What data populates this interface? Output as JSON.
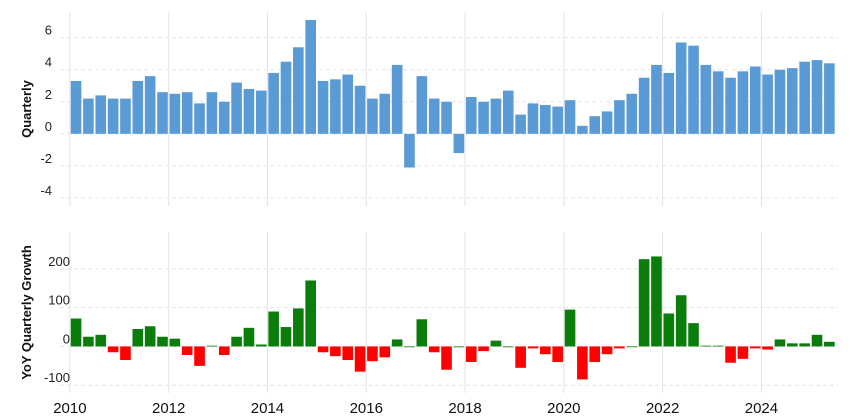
{
  "chart_data": [
    {
      "type": "bar",
      "ylabel": "Quarterly",
      "ylim": [
        -4.5,
        7.6
      ],
      "yticks": [
        -4,
        -2,
        0,
        2,
        4,
        6
      ],
      "ytick_labels": [
        "-4",
        "-2",
        "0",
        "2",
        "4",
        "6"
      ],
      "grid": true,
      "color": "#5b9bd5",
      "x": [
        2010.0,
        2010.25,
        2010.5,
        2010.75,
        2011.0,
        2011.25,
        2011.5,
        2011.75,
        2012.0,
        2012.25,
        2012.5,
        2012.75,
        2013.0,
        2013.25,
        2013.5,
        2013.75,
        2014.0,
        2014.25,
        2014.5,
        2014.75,
        2015.0,
        2015.25,
        2015.5,
        2015.75,
        2016.0,
        2016.25,
        2016.5,
        2016.75,
        2017.0,
        2017.25,
        2017.5,
        2017.75,
        2018.0,
        2018.25,
        2018.5,
        2018.75,
        2019.0,
        2019.25,
        2019.5,
        2019.75,
        2020.0,
        2020.25,
        2020.5,
        2020.75,
        2021.0,
        2021.25,
        2021.5,
        2021.75,
        2022.0,
        2022.25,
        2022.5,
        2022.75,
        2023.0,
        2023.25,
        2023.5,
        2023.75,
        2024.0,
        2024.25,
        2024.5,
        2024.75,
        2025.0,
        2025.25
      ],
      "values": [
        3.3,
        2.2,
        2.4,
        2.2,
        2.2,
        3.3,
        3.6,
        2.6,
        2.5,
        2.6,
        1.9,
        2.6,
        2.0,
        3.2,
        2.8,
        2.7,
        3.8,
        4.5,
        5.4,
        7.1,
        3.3,
        3.4,
        3.7,
        3.0,
        2.2,
        2.5,
        4.3,
        -2.1,
        3.6,
        2.2,
        2.0,
        -1.2,
        2.3,
        2.0,
        2.2,
        2.7,
        1.2,
        1.9,
        1.8,
        1.7,
        2.1,
        0.5,
        1.1,
        1.4,
        2.1,
        2.5,
        3.5,
        4.3,
        3.8,
        5.7,
        5.5,
        4.3,
        3.9,
        3.5,
        3.9,
        4.2,
        3.7,
        4.0,
        4.1,
        4.5,
        4.6,
        4.4
      ]
    },
    {
      "type": "bar",
      "ylabel": "YoY Quarterly Growth",
      "ylim": [
        -120,
        295
      ],
      "yticks": [
        -100,
        0,
        100,
        200
      ],
      "ytick_labels": [
        "-100",
        "0",
        "100",
        "200"
      ],
      "grid": true,
      "positive_color": "#0a7d0a",
      "negative_color": "#ff0000",
      "x": [
        2010.0,
        2010.25,
        2010.5,
        2010.75,
        2011.0,
        2011.25,
        2011.5,
        2011.75,
        2012.0,
        2012.25,
        2012.5,
        2012.75,
        2013.0,
        2013.25,
        2013.5,
        2013.75,
        2014.0,
        2014.25,
        2014.5,
        2014.75,
        2015.0,
        2015.25,
        2015.5,
        2015.75,
        2016.0,
        2016.25,
        2016.5,
        2016.75,
        2017.0,
        2017.25,
        2017.5,
        2017.75,
        2018.0,
        2018.25,
        2018.5,
        2018.75,
        2019.0,
        2019.25,
        2019.5,
        2019.75,
        2020.0,
        2020.25,
        2020.5,
        2020.75,
        2021.0,
        2021.25,
        2021.5,
        2021.75,
        2022.0,
        2022.25,
        2022.5,
        2022.75,
        2023.0,
        2023.25,
        2023.5,
        2023.75,
        2024.0,
        2024.25,
        2024.5,
        2024.75,
        2025.0,
        2025.25
      ],
      "values": [
        72,
        25,
        30,
        -15,
        -35,
        45,
        52,
        25,
        20,
        -22,
        -50,
        2,
        -22,
        25,
        48,
        5,
        90,
        50,
        98,
        170,
        -15,
        -25,
        -35,
        -65,
        -38,
        -28,
        18,
        0,
        70,
        -15,
        -60,
        0,
        -40,
        -12,
        15,
        0,
        -55,
        -5,
        -20,
        -40,
        95,
        -85,
        -40,
        -20,
        -5,
        0,
        225,
        232,
        85,
        132,
        60,
        2,
        2,
        -42,
        -32,
        -5,
        -8,
        18,
        8,
        8,
        30,
        12
      ]
    }
  ],
  "x_axis": {
    "xlim": [
      2009.8,
      2025.55
    ],
    "ticks": [
      2010,
      2012,
      2014,
      2016,
      2018,
      2020,
      2022,
      2024
    ],
    "tick_labels": [
      "2010",
      "2012",
      "2014",
      "2016",
      "2018",
      "2020",
      "2022",
      "2024"
    ]
  },
  "gridline_color": "#e3e3e3"
}
